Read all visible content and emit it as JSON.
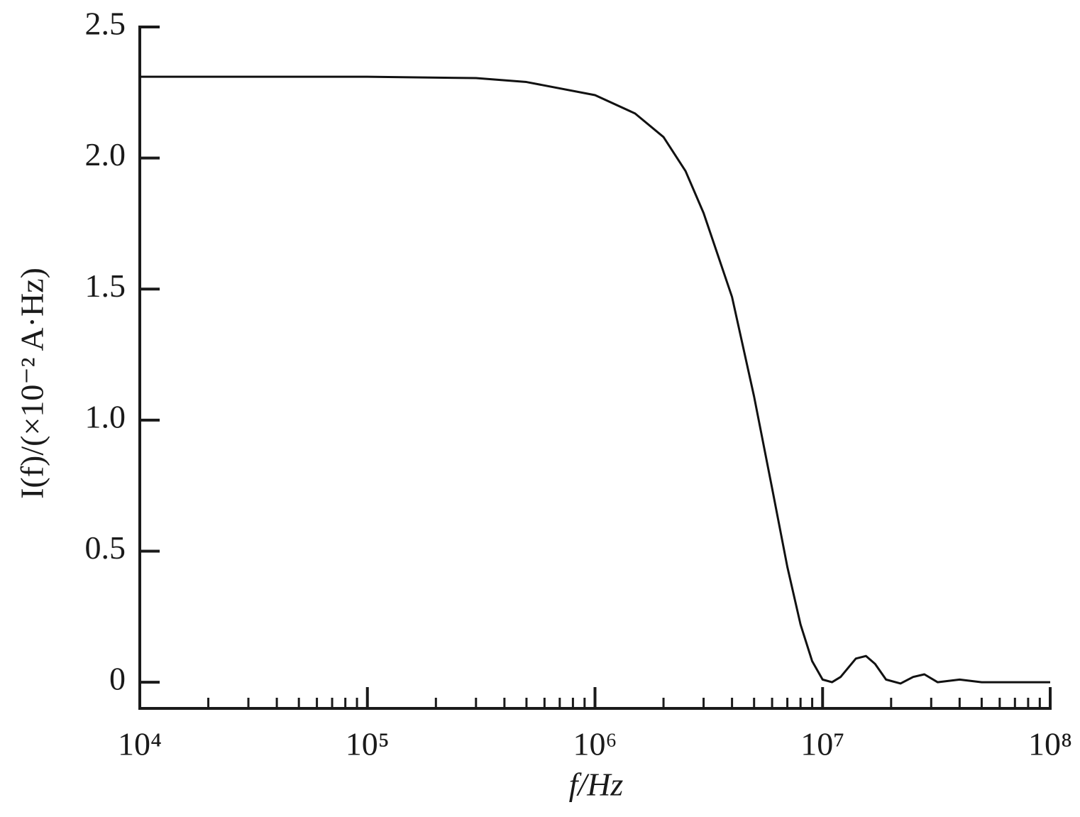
{
  "chart_data": {
    "type": "line",
    "x_label": "f/Hz",
    "y_label": "I(f)/(×10⁻² A·Hz)",
    "xscale": "log",
    "xlim": [
      10000,
      100000000
    ],
    "xticks": [
      {
        "value": 10000,
        "label": "10⁴"
      },
      {
        "value": 100000,
        "label": "10⁵"
      },
      {
        "value": 1000000,
        "label": "10⁶"
      },
      {
        "value": 10000000,
        "label": "10⁷"
      },
      {
        "value": 100000000,
        "label": "10⁸"
      }
    ],
    "ylim": [
      -0.1,
      2.5
    ],
    "yticks": [
      0,
      0.5,
      {
        "value": 1,
        "label": "1.0"
      },
      1.5,
      {
        "value": 2,
        "label": "2.0"
      },
      2.5
    ],
    "x": [
      10000,
      100000,
      300000,
      500000,
      1000000,
      1500000,
      2000000,
      2500000,
      3000000,
      4000000,
      5000000,
      6000000,
      7000000,
      8000000,
      9000000,
      10000000,
      11000000,
      12000000,
      14000000,
      15500000,
      17000000,
      19000000,
      22000000,
      25000000,
      28000000,
      32000000,
      40000000,
      50000000,
      100000000
    ],
    "series": [
      {
        "color": "#111111",
        "values": [
          2.31,
          2.31,
          2.305,
          2.29,
          2.24,
          2.17,
          2.08,
          1.95,
          1.79,
          1.47,
          1.09,
          0.74,
          0.44,
          0.22,
          0.08,
          0.01,
          0,
          0.02,
          0.09,
          0.1,
          0.07,
          0.01,
          -0.005,
          0.02,
          0.03,
          0,
          0.01,
          0,
          0
        ]
      }
    ]
  }
}
